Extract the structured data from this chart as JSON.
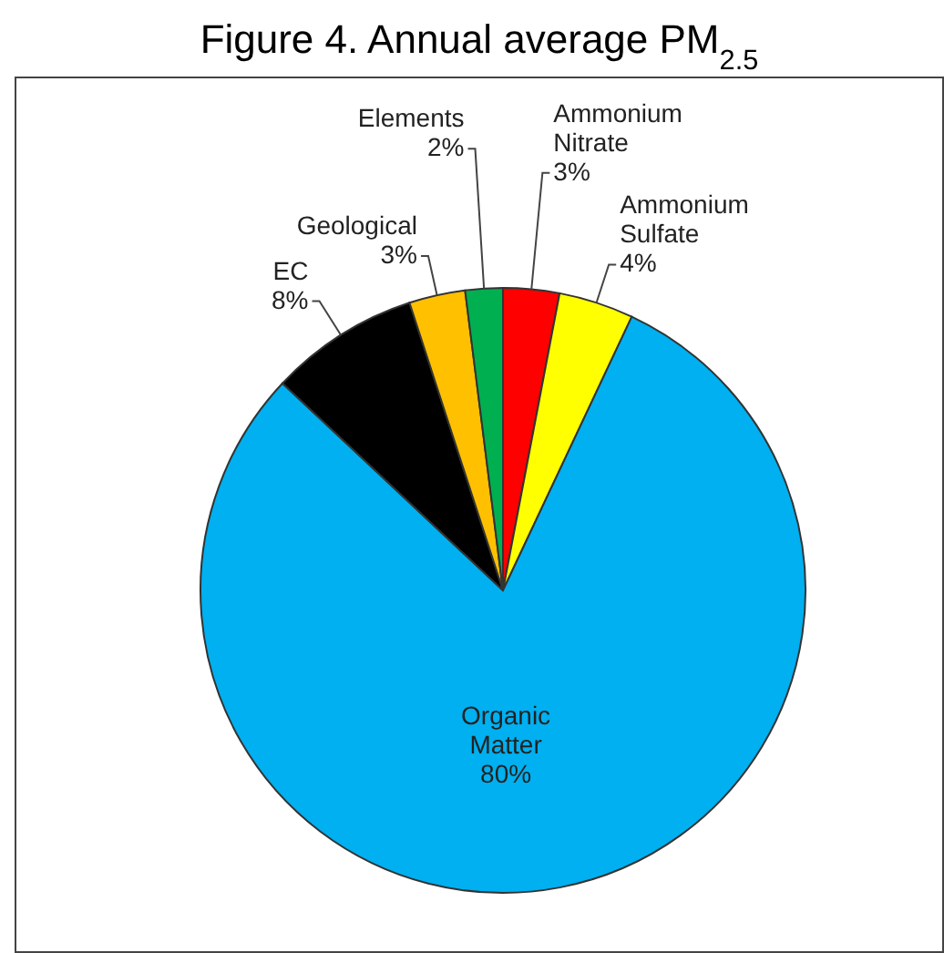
{
  "chart_data": {
    "type": "pie",
    "title": "Figure 4. Annual average PM$_{2.5}$",
    "categories": [
      "Ammonium Nitrate",
      "Ammonium Sulfate",
      "Organic Matter",
      "EC",
      "Geological",
      "Elements"
    ],
    "values": [
      3,
      4,
      80,
      8,
      3,
      2
    ],
    "value_labels": [
      "3%",
      "4%",
      "80%",
      "8%",
      "3%",
      "2%"
    ],
    "colors": [
      "#ff0000",
      "#ffff00",
      "#00b0f0",
      "#000000",
      "#ffc000",
      "#00b050"
    ],
    "legend": false
  }
}
